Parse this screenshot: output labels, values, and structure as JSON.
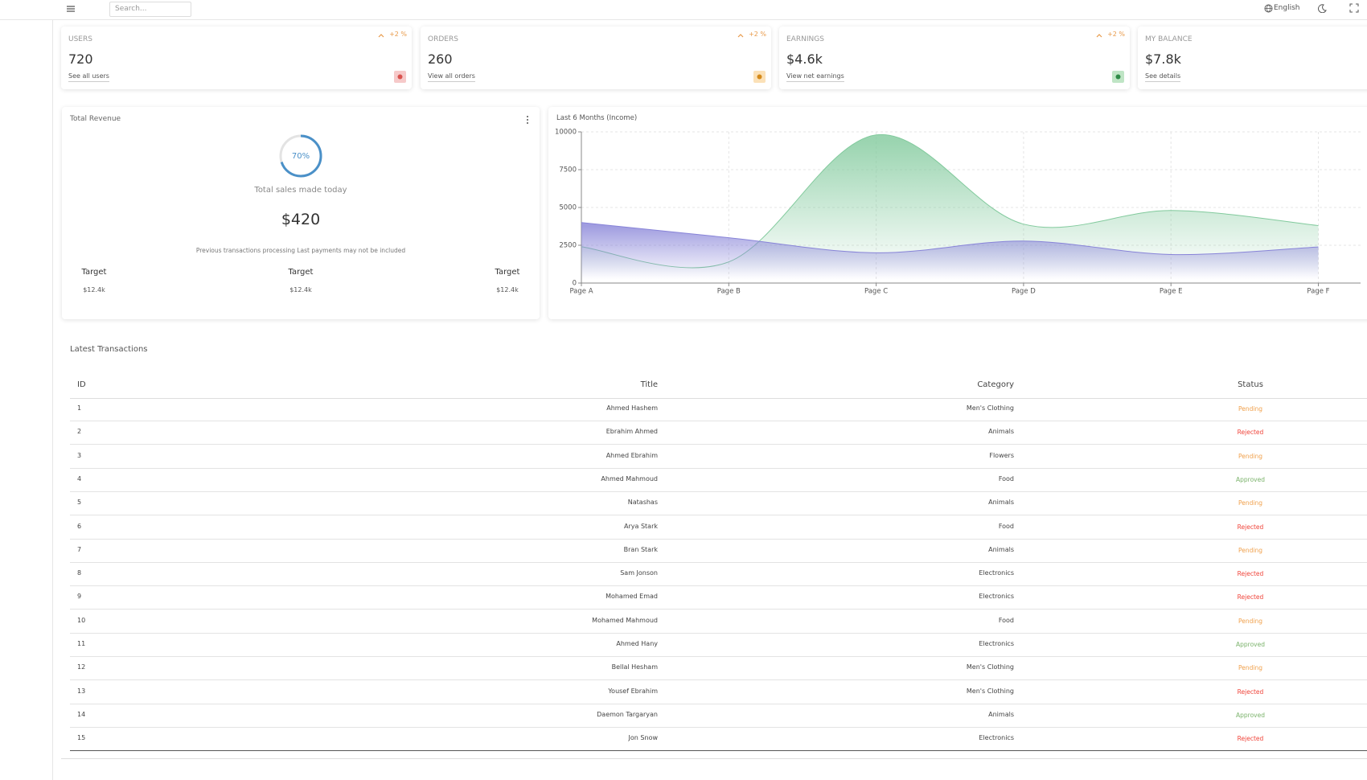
{
  "header": {
    "search_placeholder": "Search...",
    "language": "English"
  },
  "widgets": [
    {
      "title": "USERS",
      "value": 720,
      "link": "See all users",
      "change": "+2 %",
      "icon_color": "#f6c9c9",
      "icon_fg": "#d9534f"
    },
    {
      "title": "ORDERS",
      "value": 260,
      "link": "View all orders",
      "change": "+2 %",
      "icon_color": "#fbe1b8",
      "icon_fg": "#d58a1a"
    },
    {
      "title": "EARNINGS",
      "value": "$4.6k",
      "link": "View net earnings",
      "change": "+2 %",
      "icon_color": "#bfe5c5",
      "icon_fg": "#2e8b47"
    },
    {
      "title": "MY BALANCE",
      "value": "$7.8k",
      "link": "See details"
    }
  ],
  "revenue": {
    "title": "Total Revenue",
    "progress": 70,
    "progress_label": "70%",
    "subtitle": "Total sales made today",
    "amount": "$420",
    "note": "Previous transactions processing Last payments may not be included",
    "targets": [
      {
        "label": "Target",
        "amount": "$12.4k"
      },
      {
        "label": "Target",
        "amount": "$12.4k"
      },
      {
        "label": "Target",
        "amount": "$12.4k"
      }
    ]
  },
  "income_chart": {
    "type": "area",
    "title": "Last 6 Months (Income)",
    "x": [
      "Page A",
      "Page B",
      "Page C",
      "Page D",
      "Page E",
      "Page F"
    ],
    "series": [
      {
        "color": "#82ca9d",
        "values": [
          2400,
          1400,
          9800,
          3900,
          4800,
          3800
        ]
      },
      {
        "color": "#8884d8",
        "values": [
          4000,
          3000,
          2000,
          2780,
          1890,
          2390
        ]
      }
    ],
    "ylim": [
      0,
      10000
    ],
    "yticks": [
      0,
      2500,
      5000,
      7500,
      10000
    ],
    "grid": true
  },
  "transactions": {
    "title": "Latest Transactions",
    "columns": [
      "ID",
      "Title",
      "Category",
      "Status"
    ],
    "rows": [
      {
        "id": 1,
        "title": "Ahmed Hashem",
        "category": "Men's Clothing",
        "status": "Pending",
        "status_color": "#f0a04b"
      },
      {
        "id": 2,
        "title": "Ebrahim Ahmed",
        "category": "Animals",
        "status": "Rejected",
        "status_color": "#f0443a"
      },
      {
        "id": 3,
        "title": "Ahmed Ebrahim",
        "category": "Flowers",
        "status": "Pending",
        "status_color": "#f0a04b"
      },
      {
        "id": 4,
        "title": "Ahmed Mahmoud",
        "category": "Food",
        "status": "Approved",
        "status_color": "#7bb36b"
      },
      {
        "id": 5,
        "title": "Natashas",
        "category": "Animals",
        "status": "Pending",
        "status_color": "#f0a04b"
      },
      {
        "id": 6,
        "title": "Arya Stark",
        "category": "Food",
        "status": "Rejected",
        "status_color": "#f0443a"
      },
      {
        "id": 7,
        "title": "Bran Stark",
        "category": "Animals",
        "status": "Pending",
        "status_color": "#f0a04b"
      },
      {
        "id": 8,
        "title": "Sam Jonson",
        "category": "Electronics",
        "status": "Rejected",
        "status_color": "#f0443a"
      },
      {
        "id": 9,
        "title": "Mohamed Emad",
        "category": "Electronics",
        "status": "Rejected",
        "status_color": "#f0443a"
      },
      {
        "id": 10,
        "title": "Mohamed Mahmoud",
        "category": "Food",
        "status": "Pending",
        "status_color": "#f0a04b"
      },
      {
        "id": 11,
        "title": "Ahmed Hany",
        "category": "Electronics",
        "status": "Approved",
        "status_color": "#7bb36b"
      },
      {
        "id": 12,
        "title": "Bellal Hesham",
        "category": "Men's Clothing",
        "status": "Pending",
        "status_color": "#f0a04b"
      },
      {
        "id": 13,
        "title": "Yousef Ebrahim",
        "category": "Men's Clothing",
        "status": "Rejected",
        "status_color": "#f0443a"
      },
      {
        "id": 14,
        "title": "Daemon Targaryan",
        "category": "Animals",
        "status": "Approved",
        "status_color": "#7bb36b"
      },
      {
        "id": 15,
        "title": "Jon Snow",
        "category": "Electronics",
        "status": "Rejected",
        "status_color": "#f0443a"
      }
    ]
  }
}
